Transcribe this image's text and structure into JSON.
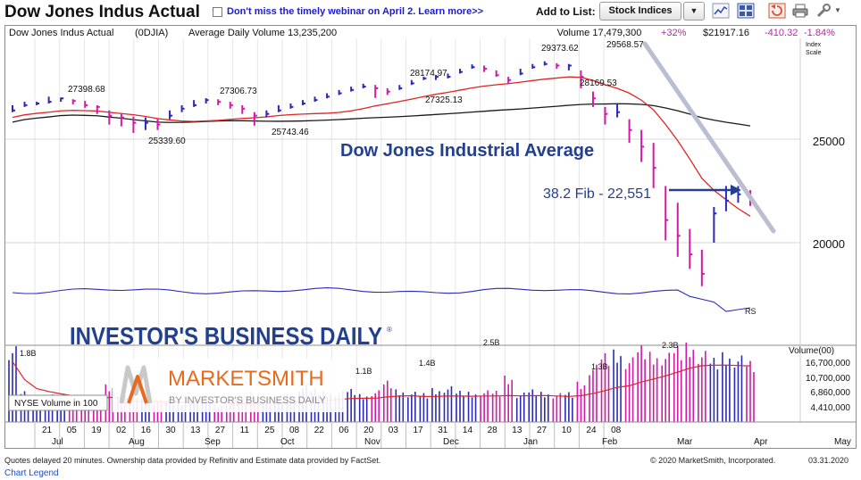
{
  "header": {
    "title": "Dow Jones Indus Actual",
    "promo": "Don't miss the timely webinar on April 2. Learn more>>",
    "add_to_list_label": "Add to List:",
    "list_value": "Stock Indices",
    "tools": [
      "line-chart-icon",
      "grid-icon",
      "undo-chart-icon",
      "print-icon",
      "settings-icon"
    ]
  },
  "infobar": {
    "name": "Dow Jones Indus Actual",
    "symbol": "(0DJIA)",
    "avg_volume": "Average Daily Volume 13,235,200",
    "volume": "Volume 17,479,300",
    "volume_change": "+32%",
    "price": "$21917.16",
    "change": "-410.32",
    "change_pct": "-1.84%",
    "scale_label_1": "Index",
    "scale_label_2": "Scale"
  },
  "chart_data": {
    "type": "bar",
    "title": "Dow Jones Industrial Average",
    "annotation": "38.2 Fib - 22,551",
    "rs_label": "RS",
    "nyse_label": "NYSE Volume in 100",
    "price_axis": {
      "ticks": [
        25000,
        20000
      ],
      "tick_labels": [
        "25000",
        "20000"
      ]
    },
    "volume_axis": {
      "title": "Volume(00)",
      "tick_labels": [
        "16,700,000",
        "10,700,000",
        "6,860,000",
        "4,410,000"
      ]
    },
    "x_axis": {
      "day_labels": [
        "21",
        "05",
        "19",
        "02",
        "16",
        "30",
        "13",
        "27",
        "11",
        "25",
        "08",
        "22",
        "06",
        "20",
        "03",
        "17",
        "31",
        "14",
        "28",
        "13",
        "27",
        "10",
        "24",
        "08"
      ],
      "month_labels": [
        "Jul",
        "Aug",
        "Sep",
        "Oct",
        "Nov",
        "Dec",
        "Jan",
        "Feb",
        "Mar",
        "Apr",
        "May"
      ]
    },
    "price_labels": [
      {
        "text": "27398.68",
        "date": "2019-07-15",
        "value": 27398.68
      },
      {
        "text": "25339.60",
        "date": "2019-08-15",
        "value": 25339.6
      },
      {
        "text": "27306.73",
        "date": "2019-09-12",
        "value": 27306.73
      },
      {
        "text": "25743.46",
        "date": "2019-10-02",
        "value": 25743.46
      },
      {
        "text": "28174.97",
        "date": "2019-11-27",
        "value": 28174.97
      },
      {
        "text": "27325.13",
        "date": "2019-12-03",
        "value": 27325.13
      },
      {
        "text": "29373.62",
        "date": "2020-01-17",
        "value": 29373.62
      },
      {
        "text": "28169.53",
        "date": "2020-01-31",
        "value": 28169.53
      },
      {
        "text": "29568.57",
        "date": "2020-02-12",
        "value": 29568.57
      }
    ],
    "volume_labels": [
      {
        "text": "1.8B",
        "date": "2019-06-28"
      },
      {
        "text": "1.1B",
        "date": "2019-11-01"
      },
      {
        "text": "1.4B",
        "date": "2019-11-29"
      },
      {
        "text": "2.5B",
        "date": "2019-12-20"
      },
      {
        "text": "1.3B",
        "date": "2020-01-31"
      },
      {
        "text": "2.3B",
        "date": "2020-02-28"
      }
    ],
    "price_series": [
      [
        26600,
        26900,
        26500
      ],
      [
        26900,
        27100,
        26800
      ],
      [
        27000,
        27100,
        26900
      ],
      [
        27100,
        27400,
        27000
      ],
      [
        27300,
        27350,
        27100
      ],
      [
        27150,
        27250,
        26950
      ],
      [
        26900,
        27150,
        26750
      ],
      [
        26800,
        26900,
        26400
      ],
      [
        26300,
        26600,
        25800
      ],
      [
        26200,
        26400,
        25700
      ],
      [
        25900,
        26250,
        25340
      ],
      [
        25900,
        26200,
        25500
      ],
      [
        25800,
        26100,
        25500
      ],
      [
        26300,
        26600,
        26100
      ],
      [
        26700,
        26900,
        26500
      ],
      [
        26900,
        27200,
        26800
      ],
      [
        27200,
        27310,
        27000
      ],
      [
        27100,
        27250,
        26900
      ],
      [
        26900,
        27100,
        26700
      ],
      [
        26700,
        26900,
        26400
      ],
      [
        26300,
        26500,
        25743
      ],
      [
        26400,
        26600,
        26200
      ],
      [
        26600,
        26900,
        26500
      ],
      [
        26800,
        27000,
        26700
      ],
      [
        27000,
        27200,
        26900
      ],
      [
        27200,
        27400,
        27100
      ],
      [
        27400,
        27600,
        27300
      ],
      [
        27600,
        27800,
        27500
      ],
      [
        27800,
        28000,
        27700
      ],
      [
        28000,
        28175,
        27900
      ],
      [
        27900,
        28100,
        27325
      ],
      [
        27700,
        27900,
        27500
      ],
      [
        27900,
        28100,
        27800
      ],
      [
        28200,
        28400,
        28100
      ],
      [
        28500,
        28600,
        28400
      ],
      [
        28600,
        28700,
        28400
      ],
      [
        28600,
        28800,
        28500
      ],
      [
        28900,
        29100,
        28800
      ],
      [
        29200,
        29374,
        29100
      ],
      [
        29100,
        29300,
        28900
      ],
      [
        28700,
        29000,
        28600
      ],
      [
        28400,
        28600,
        28170
      ],
      [
        28800,
        29100,
        28700
      ],
      [
        29200,
        29400,
        29100
      ],
      [
        29400,
        29569,
        29300
      ],
      [
        29300,
        29450,
        29100
      ],
      [
        29300,
        29400,
        29000
      ],
      [
        28600,
        29000,
        27900
      ],
      [
        27300,
        27700,
        26800
      ],
      [
        26400,
        26800,
        25800
      ],
      [
        26500,
        27000,
        26200
      ],
      [
        25500,
        26100,
        24800
      ],
      [
        24600,
        25500,
        23800
      ],
      [
        23500,
        24800,
        22500
      ],
      [
        21000,
        22600,
        20100
      ],
      [
        20300,
        21800,
        19400
      ],
      [
        19500,
        20600,
        18900
      ],
      [
        18700,
        19700,
        18210
      ],
      [
        21300,
        21600,
        20000
      ],
      [
        21900,
        22600,
        21400
      ],
      [
        22200,
        22600,
        21800
      ],
      [
        22000,
        22400,
        21650
      ]
    ],
    "volume_series": [
      16700000,
      6900000,
      4400000,
      6200000,
      5400000,
      4700000,
      4000000,
      5600000,
      8400000,
      7000000,
      6500000,
      5200000,
      5000000,
      4800000,
      4600000,
      5200000,
      6000000,
      4200000,
      5100000,
      5600000,
      6700000,
      5800000,
      5000000,
      6100000,
      8300000,
      7500000,
      6900000,
      7000000,
      7400000,
      6300000,
      7100000,
      9200000,
      7300000,
      6800000,
      6500000,
      7600000,
      8000000,
      7000000,
      6800000,
      7100000,
      7000000,
      10300000,
      6600000,
      7300000,
      6800000,
      6500000,
      6700000,
      9000000,
      12700000,
      15200000,
      16000000,
      14300000,
      16900000,
      15500000,
      15300000,
      16700000,
      17500000,
      15700000,
      14200000,
      15400000,
      14700000,
      13500000
    ],
    "volume_colors": {
      "up": "#2a2ab8",
      "down": "#d21aa6"
    },
    "colors": {
      "ma50": "#e02424",
      "ma200": "#1a1a1a",
      "bars_up": "#2a2ab8",
      "bars_down": "#d21aa6",
      "rs": "#2a2ab8",
      "trendline": "#b9bfd0",
      "accent": "#233f8f"
    }
  },
  "logos": {
    "ibd": "INVESTOR'S BUSINESS DAILY",
    "ms_main": "MARKETSMITH",
    "ms_sub": "BY INVESTOR'S BUSINESS DAILY"
  },
  "footer": {
    "disclaimer": "Quotes delayed 20 minutes. Ownership data provided by Refinitiv and Estimate data provided by FactSet.",
    "copyright": "© 2020 MarketSmith, Incorporated.",
    "date": "03.31.2020",
    "legend_link": "Chart Legend"
  }
}
